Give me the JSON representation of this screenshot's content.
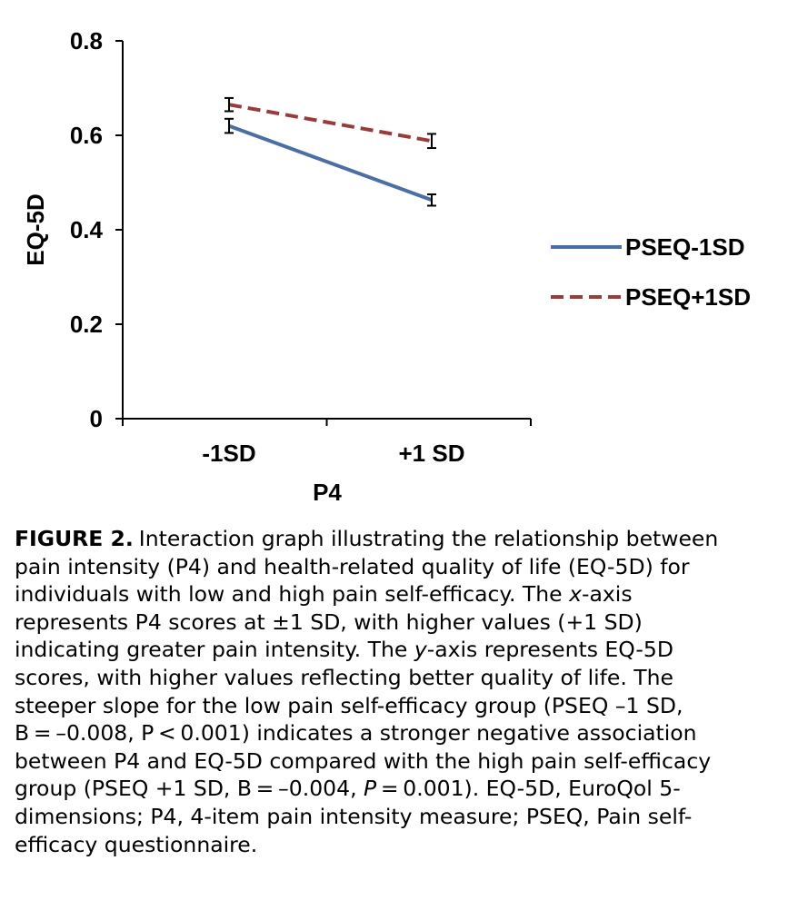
{
  "chart_data": {
    "type": "line",
    "title": "",
    "xlabel": "P4",
    "ylabel": "EQ-5D",
    "categories": [
      "-1SD",
      "+1 SD"
    ],
    "ylim": [
      0,
      0.8
    ],
    "yticks": [
      0,
      0.2,
      0.4,
      0.6,
      0.8
    ],
    "ytick_labels": [
      "0",
      "0.2",
      "0.4",
      "0.6",
      "0.8"
    ],
    "grid": false,
    "legend_position": "right",
    "series": [
      {
        "name": "PSEQ-1SD",
        "values": [
          0.62,
          0.463
        ],
        "error": [
          0.015,
          0.012
        ],
        "color": "#4A6FA5",
        "style": "solid"
      },
      {
        "name": "PSEQ+1SD",
        "values": [
          0.665,
          0.588
        ],
        "error": [
          0.014,
          0.015
        ],
        "color": "#993B3B",
        "style": "dashed"
      }
    ]
  },
  "caption": {
    "label": "FIGURE 2.",
    "lines": [
      "Interaction graph illustrating the relationship between",
      "pain intensity (P4) and health-related quality of life (EQ-5D) for",
      "individuals with low and high pain self-efficacy. The x-axis",
      "represents P4 scores at ±1 SD, with higher values (+1 SD)",
      "indicating greater pain intensity. The y-axis represents EQ-5D",
      "scores, with higher values reflecting better quality of life. The",
      "steeper slope for the low pain self-efficacy group (PSEQ –1 SD,",
      "B = –0.008, P < 0.001) indicates a stronger negative association",
      "between P4 and EQ-5D compared with the high pain self-efficacy",
      "group (PSEQ +1 SD, B = –0.004, P = 0.001). EQ-5D, EuroQol 5-",
      "dimensions; P4, 4-item pain intensity measure; PSEQ, Pain self-",
      "efficacy questionnaire."
    ]
  }
}
